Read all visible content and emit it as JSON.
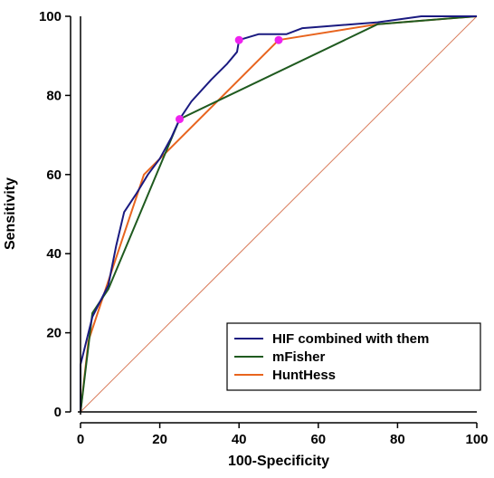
{
  "chart_data": {
    "type": "line",
    "title": "",
    "xlabel": "100-Specificity",
    "ylabel": "Sensitivity",
    "xlim": [
      0,
      100
    ],
    "ylim": [
      0,
      100
    ],
    "x_ticks": [
      "0",
      "20",
      "40",
      "60",
      "80",
      "100"
    ],
    "y_ticks": [
      "0",
      "20",
      "40",
      "60",
      "80",
      "100"
    ],
    "grid": false,
    "legend_position": "bottom-right",
    "reference_line": {
      "points": [
        [
          0,
          0
        ],
        [
          100,
          100
        ]
      ],
      "color": "#d97b5a"
    },
    "series": [
      {
        "name": "HIF combined with them",
        "color": "#1a1a80",
        "points": [
          [
            0,
            0
          ],
          [
            0,
            12
          ],
          [
            1,
            16
          ],
          [
            3,
            24
          ],
          [
            5,
            28
          ],
          [
            7,
            32
          ],
          [
            9,
            42
          ],
          [
            11,
            50.5
          ],
          [
            14,
            55
          ],
          [
            17,
            60
          ],
          [
            20,
            64
          ],
          [
            23,
            69.5
          ],
          [
            25,
            74
          ],
          [
            28,
            78.5
          ],
          [
            33,
            84
          ],
          [
            37,
            88
          ],
          [
            39.5,
            91
          ],
          [
            40,
            94
          ],
          [
            45,
            95.5
          ],
          [
            52,
            95.5
          ],
          [
            56,
            97
          ],
          [
            75,
            98.5
          ],
          [
            86,
            100
          ],
          [
            100,
            100
          ]
        ]
      },
      {
        "name": "mFisher",
        "color": "#1f5a1f",
        "points": [
          [
            0,
            0
          ],
          [
            3,
            25
          ],
          [
            5,
            28
          ],
          [
            7,
            31
          ],
          [
            25,
            74
          ],
          [
            75,
            98
          ],
          [
            100,
            100
          ]
        ]
      },
      {
        "name": "HuntHess",
        "color": "#e8641e",
        "points": [
          [
            0,
            0
          ],
          [
            2,
            18
          ],
          [
            4,
            24
          ],
          [
            8,
            36
          ],
          [
            16,
            60
          ],
          [
            35,
            79
          ],
          [
            50,
            94
          ],
          [
            75,
            98
          ],
          [
            100,
            100
          ]
        ]
      }
    ],
    "markers": {
      "color": "#ee22ee",
      "points": [
        [
          25,
          74
        ],
        [
          40,
          94
        ],
        [
          50,
          94
        ]
      ]
    }
  }
}
